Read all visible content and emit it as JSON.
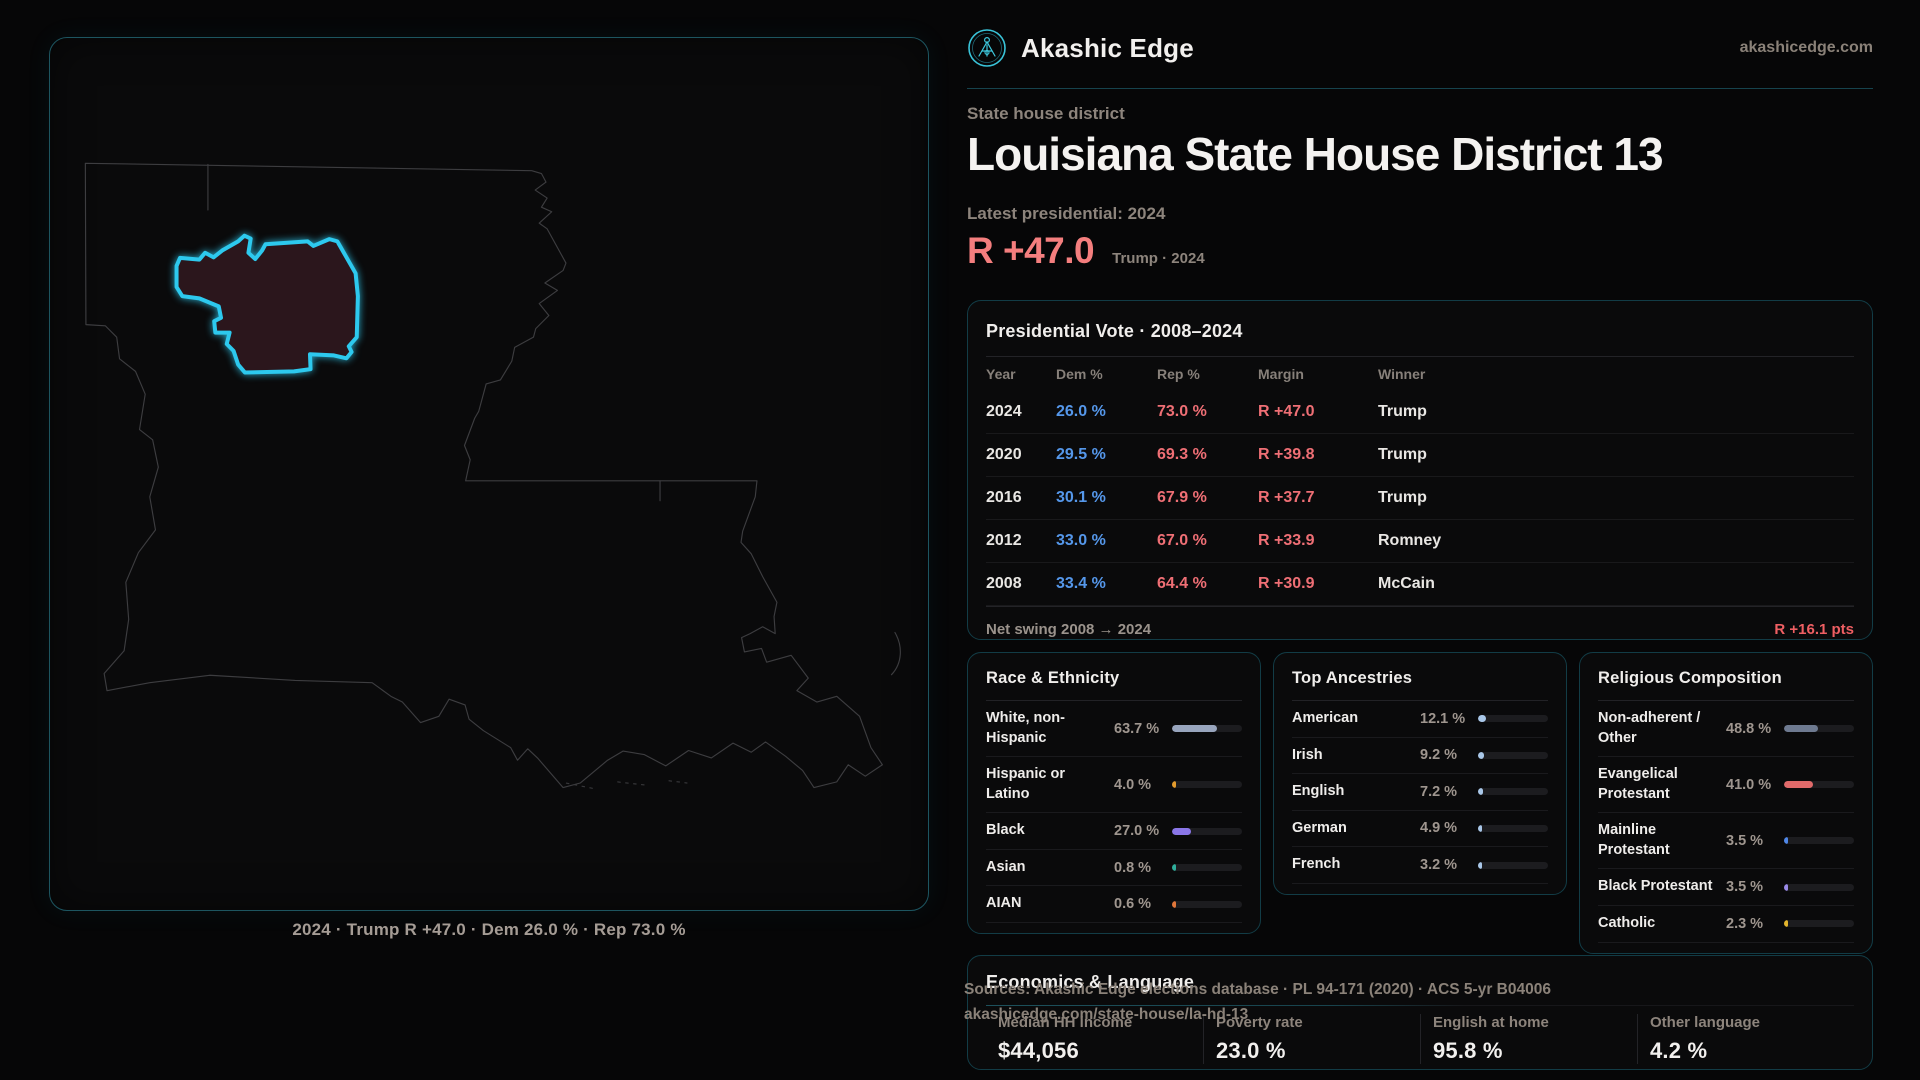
{
  "brand": {
    "name": "Akashic Edge",
    "domain": "akashicedge.com"
  },
  "header": {
    "kicker": "State house district",
    "title": "Louisiana State House District 13",
    "subtitle": "Latest presidential: 2024",
    "headline_margin": "R +47.0",
    "headline_context": "Trump · 2024"
  },
  "map": {
    "caption": "2024 · Trump R +47.0 · Dem 26.0 % · Rep 73.0 %"
  },
  "theme": {
    "accent_cyan": "#2dc9ee",
    "dem_blue": "#5597ea",
    "rep_red": "#ef6f75"
  },
  "presidential_table": {
    "title": "Presidential Vote · 2008–2024",
    "columns": {
      "year": "Year",
      "dem": "Dem %",
      "rep": "Rep %",
      "margin": "Margin",
      "winner": "Winner"
    },
    "rows": [
      {
        "year": "2024",
        "dem": "26.0 %",
        "rep": "73.0 %",
        "margin": "R +47.0",
        "winner": "Trump"
      },
      {
        "year": "2020",
        "dem": "29.5 %",
        "rep": "69.3 %",
        "margin": "R +39.8",
        "winner": "Trump"
      },
      {
        "year": "2016",
        "dem": "30.1 %",
        "rep": "67.9 %",
        "margin": "R +37.7",
        "winner": "Trump"
      },
      {
        "year": "2012",
        "dem": "33.0 %",
        "rep": "67.0 %",
        "margin": "R +33.9",
        "winner": "Romney"
      },
      {
        "year": "2008",
        "dem": "33.4 %",
        "rep": "64.4 %",
        "margin": "R +30.9",
        "winner": "McCain"
      }
    ],
    "footer_label": "Net swing 2008 → 2024",
    "footer_value": "R +16.1 pts"
  },
  "race_panel": {
    "title": "Race & Ethnicity",
    "rows": [
      {
        "label": "White, non-Hispanic",
        "value": "63.7 %",
        "pct": 63.7,
        "color": "#98a5bd"
      },
      {
        "label": "Hispanic or Latino",
        "value": "4.0 %",
        "pct": 4.0,
        "color": "#e39b2d"
      },
      {
        "label": "Black",
        "value": "27.0 %",
        "pct": 27.0,
        "color": "#8a76e8"
      },
      {
        "label": "Asian",
        "value": "0.8 %",
        "pct": 0.8,
        "color": "#2fae9b"
      },
      {
        "label": "AIAN",
        "value": "0.6 %",
        "pct": 0.6,
        "color": "#e0763a"
      }
    ]
  },
  "ancestry_panel": {
    "title": "Top Ancestries",
    "rows": [
      {
        "label": "American",
        "value": "12.1 %",
        "pct": 12.1,
        "color": "#a9c7e8"
      },
      {
        "label": "Irish",
        "value": "9.2 %",
        "pct": 9.2,
        "color": "#a9c7e8"
      },
      {
        "label": "English",
        "value": "7.2 %",
        "pct": 7.2,
        "color": "#a9c7e8"
      },
      {
        "label": "German",
        "value": "4.9 %",
        "pct": 4.9,
        "color": "#a9c7e8"
      },
      {
        "label": "French",
        "value": "3.2 %",
        "pct": 3.2,
        "color": "#a9c7e8"
      }
    ]
  },
  "religion_panel": {
    "title": "Religious Composition",
    "rows": [
      {
        "label": "Non-adherent / Other",
        "value": "48.8 %",
        "pct": 48.8,
        "color": "#6e7a90"
      },
      {
        "label": "Evangelical Protestant",
        "value": "41.0 %",
        "pct": 41.0,
        "color": "#e06a6a"
      },
      {
        "label": "Mainline Protestant",
        "value": "3.5 %",
        "pct": 3.5,
        "color": "#4f87e8"
      },
      {
        "label": "Black Protestant",
        "value": "3.5 %",
        "pct": 3.5,
        "color": "#9a8ae8"
      },
      {
        "label": "Catholic",
        "value": "2.3 %",
        "pct": 2.3,
        "color": "#e3b52d"
      }
    ]
  },
  "economics_panel": {
    "title": "Economics & Language",
    "stats": [
      {
        "label": "Median HH income",
        "value": "$44,056"
      },
      {
        "label": "Poverty rate",
        "value": "23.0 %"
      },
      {
        "label": "English at home",
        "value": "95.8 %"
      },
      {
        "label": "Other language",
        "value": "4.2 %"
      }
    ]
  },
  "sources": {
    "line1": "Sources: Akashic Edge elections database · PL 94-171 (2020) · ACS 5-yr B04006",
    "line2": "akashicedge.com/state-house/la-hd-13"
  }
}
